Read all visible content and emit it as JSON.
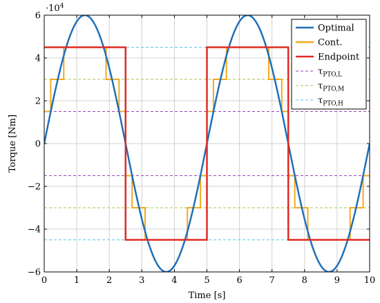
{
  "chart_data": {
    "type": "line",
    "title": "",
    "xlabel": "Time [s]",
    "ylabel": "Torque [Nm]",
    "y_multiplier_label": "·10",
    "y_multiplier_exponent": "4",
    "xlim": [
      0,
      10
    ],
    "ylim": [
      -6,
      6
    ],
    "x_ticks": [
      "0",
      "1",
      "2",
      "3",
      "4",
      "5",
      "6",
      "7",
      "8",
      "9",
      "10"
    ],
    "y_ticks": [
      "−6",
      "−4",
      "−2",
      "0",
      "2",
      "4",
      "6"
    ],
    "grid": true,
    "legend_position": "top-right",
    "series": [
      {
        "name": "Optimal",
        "color": "#1f6fb8",
        "kind": "sine",
        "amplitude": 6,
        "period": 5,
        "x_start": 0,
        "x_end": 10
      },
      {
        "name": "Cont.",
        "color": "#f2a91f",
        "kind": "step",
        "x": [
          0,
          0.2,
          0.2,
          0.6,
          0.6,
          1.9,
          1.9,
          2.3,
          2.3,
          2.5,
          2.5,
          2.7,
          2.7,
          3.1,
          3.1,
          4.4,
          4.4,
          4.8,
          4.8,
          5,
          5,
          5.2,
          5.2,
          5.6,
          5.6,
          6.9,
          6.9,
          7.3,
          7.3,
          7.5,
          7.5,
          7.7,
          7.7,
          8.1,
          8.1,
          9.4,
          9.4,
          9.8,
          9.8,
          10
        ],
        "y": [
          1.5,
          1.5,
          3,
          3,
          4.5,
          4.5,
          3,
          3,
          1.5,
          1.5,
          -1.5,
          -1.5,
          -3,
          -3,
          -4.5,
          -4.5,
          -3,
          -3,
          -1.5,
          -1.5,
          1.5,
          1.5,
          3,
          3,
          4.5,
          4.5,
          3,
          3,
          1.5,
          1.5,
          -1.5,
          -1.5,
          -3,
          -3,
          -4.5,
          -4.5,
          -3,
          -3,
          -1.5,
          -1.5
        ]
      },
      {
        "name": "Endpoint",
        "color": "#e02a22",
        "kind": "step",
        "x": [
          0,
          2.5,
          2.5,
          5,
          5,
          7.5,
          7.5,
          10
        ],
        "y": [
          4.5,
          4.5,
          -4.5,
          -4.5,
          4.5,
          4.5,
          -4.5,
          -4.5
        ]
      }
    ],
    "thresholds": [
      {
        "name": "τ",
        "subscript": "PTO,L",
        "color": "#9b42b5",
        "values": [
          1.5,
          -1.5
        ]
      },
      {
        "name": "τ",
        "subscript": "PTO,M",
        "color": "#a8c24b",
        "values": [
          3,
          -3
        ]
      },
      {
        "name": "τ",
        "subscript": "PTO,H",
        "color": "#5ec4e6",
        "values": [
          4.5,
          -4.5
        ]
      }
    ]
  }
}
